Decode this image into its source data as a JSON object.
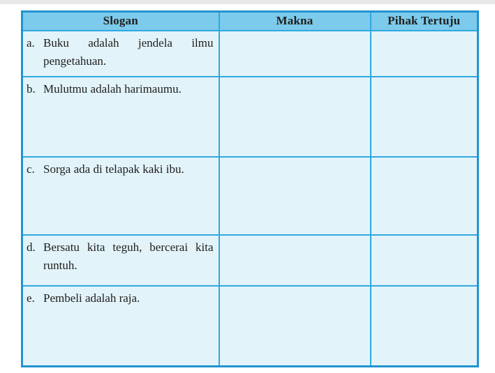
{
  "page": {
    "background": "#ffffff",
    "top_edge_strip_color": "#e8e8e8"
  },
  "table": {
    "headers": [
      {
        "label": "Slogan"
      },
      {
        "label": "Makna"
      },
      {
        "label": "Pihak Tertuju"
      }
    ],
    "rows": [
      {
        "letter": "a.",
        "slogan": "Buku adalah jendela ilmu pengetahuan.",
        "makna": "",
        "pihak_tertuju": ""
      },
      {
        "letter": "b.",
        "slogan": "Mulutmu adalah harimaumu.",
        "makna": "",
        "pihak_tertuju": ""
      },
      {
        "letter": "c.",
        "slogan": "Sorga ada di telapak kaki ibu.",
        "makna": "",
        "pihak_tertuju": ""
      },
      {
        "letter": "d.",
        "slogan": "Bersatu kita teguh, bercerai kita runtuh.",
        "makna": "",
        "pihak_tertuju": ""
      },
      {
        "letter": "e.",
        "slogan": "Pembeli adalah raja.",
        "makna": "",
        "pihak_tertuju": ""
      }
    ],
    "colors": {
      "header_bg": "#7ccaec",
      "cell_bg": "#e2f3fa",
      "inner_border": "#2fa9de",
      "outer_border": "#2193cf",
      "text": "#1f1e1c"
    }
  }
}
